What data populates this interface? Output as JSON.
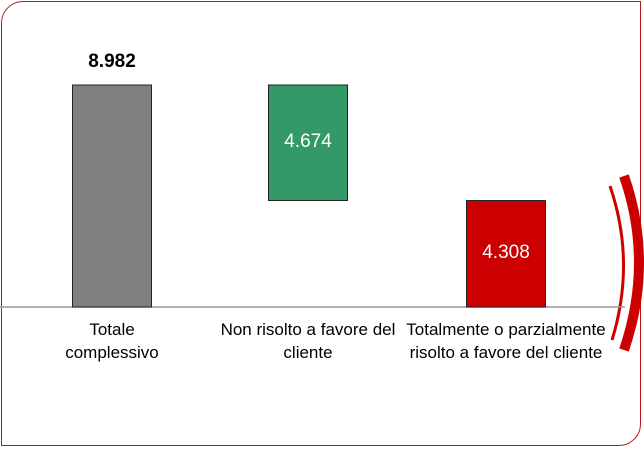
{
  "chart_data": {
    "type": "waterfall",
    "categories": [
      "Totale complessivo",
      "Non risolto a favore del cliente",
      "Totalmente o parzialmente risolto a favore del cliente"
    ],
    "values": [
      8982,
      4674,
      4308
    ],
    "value_labels": [
      "8.982",
      "4.674",
      "4.308"
    ],
    "colors": [
      "#808080",
      "#339966",
      "#cc0000"
    ]
  }
}
